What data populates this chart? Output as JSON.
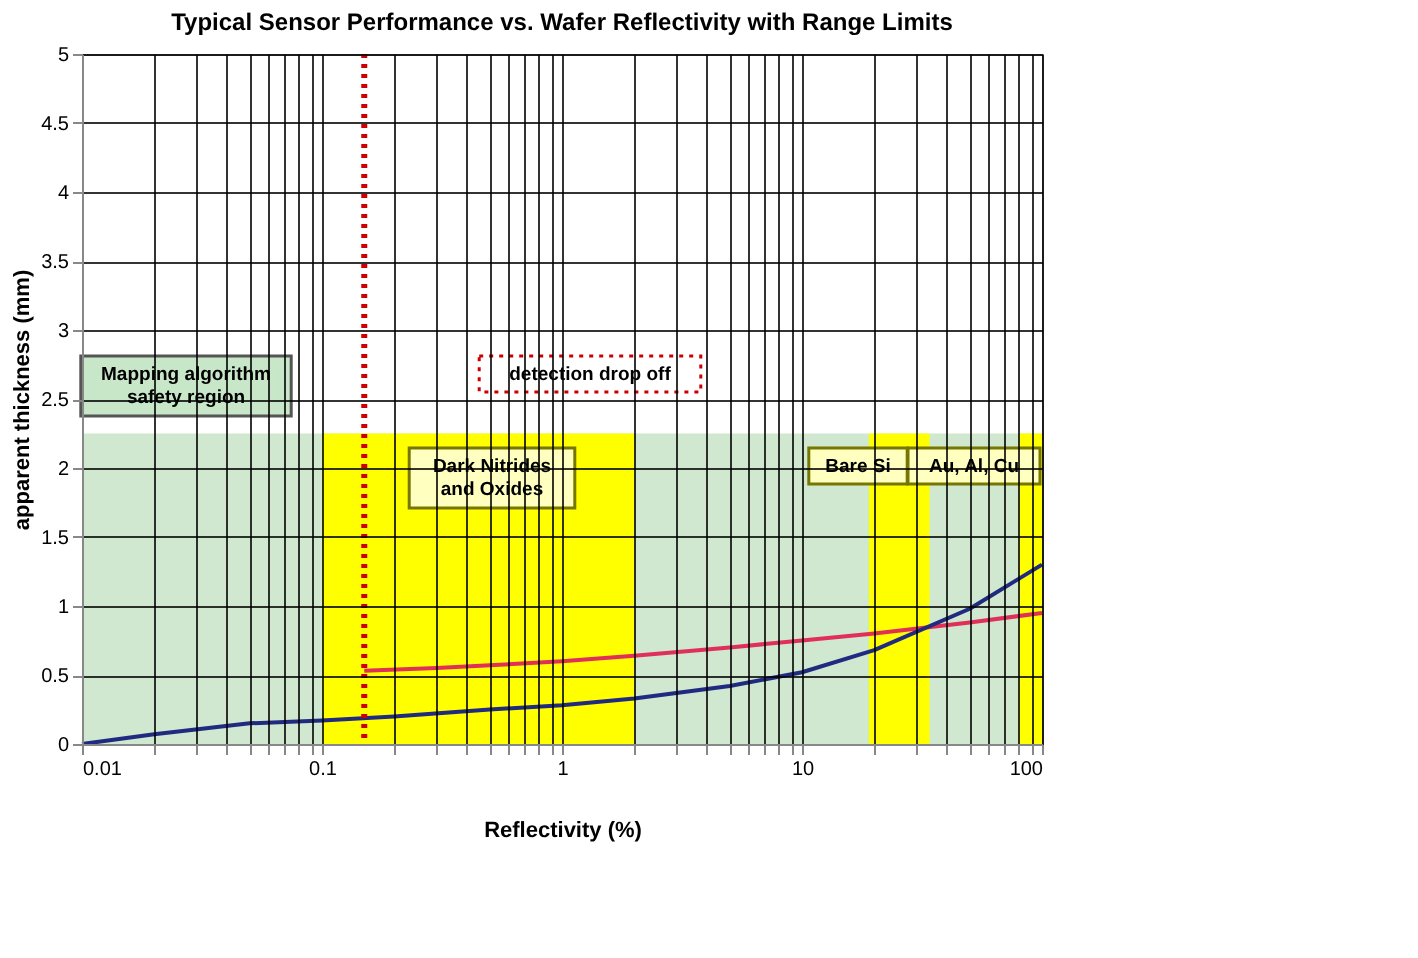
{
  "chart_data": {
    "type": "line",
    "title": "Typical Sensor Performance vs. Wafer Reflectivity with Range Limits",
    "xlabel": "Reflectivity (%)",
    "ylabel": "apparent thickness (mm)",
    "log": "x",
    "xlim": [
      0.01,
      100
    ],
    "xticks": [
      0.01,
      {
        "value": 0.02,
        "label": null
      },
      {
        "value": 0.03,
        "label": null
      },
      {
        "value": 0.04,
        "label": null
      },
      {
        "value": 0.05,
        "label": null
      },
      {
        "value": 0.06,
        "label": null
      },
      {
        "value": 0.07,
        "label": null
      },
      {
        "value": 0.08,
        "label": null
      },
      {
        "value": 0.09,
        "label": null
      },
      0.1,
      {
        "value": 0.2,
        "label": null
      },
      {
        "value": 0.3,
        "label": null
      },
      {
        "value": 0.4,
        "label": null
      },
      {
        "value": 0.5,
        "label": null
      },
      {
        "value": 0.6,
        "label": null
      },
      {
        "value": 0.7,
        "label": null
      },
      {
        "value": 0.8,
        "label": null
      },
      {
        "value": 0.9,
        "label": null
      },
      1,
      {
        "value": 2,
        "label": null
      },
      {
        "value": 3,
        "label": null
      },
      {
        "value": 4,
        "label": null
      },
      {
        "value": 5,
        "label": null
      },
      {
        "value": 6,
        "label": null
      },
      {
        "value": 7,
        "label": null
      },
      {
        "value": 8,
        "label": null
      },
      {
        "value": 9,
        "label": null
      },
      10,
      {
        "value": 20,
        "label": null
      },
      {
        "value": 30,
        "label": null
      },
      {
        "value": 40,
        "label": null
      },
      {
        "value": 50,
        "label": null
      },
      {
        "value": 60,
        "label": null
      },
      {
        "value": 70,
        "label": null
      },
      {
        "value": 80,
        "label": null
      },
      {
        "value": 90,
        "label": null
      },
      100
    ],
    "ylim": [
      0,
      5
    ],
    "yticks": [
      0,
      0.5,
      1,
      1.5,
      2,
      2.5,
      3,
      3.5,
      4,
      4.5,
      5
    ],
    "grid": true,
    "series": [
      {
        "type": "area",
        "color": "#cfe8cf",
        "x": [
          0.01,
          100
        ],
        "values": [
          2.25,
          2.25
        ]
      },
      {
        "type": "area",
        "color": "#ffff00",
        "x": [
          0.1,
          2
        ],
        "values": [
          2.25,
          2.25
        ]
      },
      {
        "type": "area",
        "color": "#ffff00",
        "x": [
          19,
          34
        ],
        "values": [
          2.25,
          2.25
        ]
      },
      {
        "type": "area",
        "color": "#ffff00",
        "x": [
          80,
          100
        ],
        "values": [
          2.25,
          2.25
        ]
      },
      {
        "color": "#e0305a",
        "x": [
          0.15,
          0.3,
          0.5,
          1,
          2,
          5,
          10,
          20,
          50,
          100
        ],
        "values": [
          0.53,
          0.55,
          0.57,
          0.6,
          0.64,
          0.7,
          0.75,
          0.8,
          0.88,
          0.95
        ]
      },
      {
        "color": "#202a80",
        "x": [
          0.01,
          0.02,
          0.05,
          0.1,
          0.2,
          0.5,
          1,
          2,
          5,
          10,
          20,
          50,
          100
        ],
        "values": [
          0,
          0.07,
          0.15,
          0.17,
          0.2,
          0.25,
          0.28,
          0.33,
          0.42,
          0.52,
          0.68,
          0.98,
          1.3
        ]
      }
    ],
    "ref_lines": [
      {
        "axis": "x",
        "value": 0.15,
        "color": "#cc0000",
        "line_style": "dotted"
      }
    ],
    "annotations": [
      "Mapping algorithm\nsafety region",
      "detection drop off",
      "Dark Nitrides\nand Oxides",
      "Bare Si",
      "Au, Al, Cu"
    ]
  }
}
